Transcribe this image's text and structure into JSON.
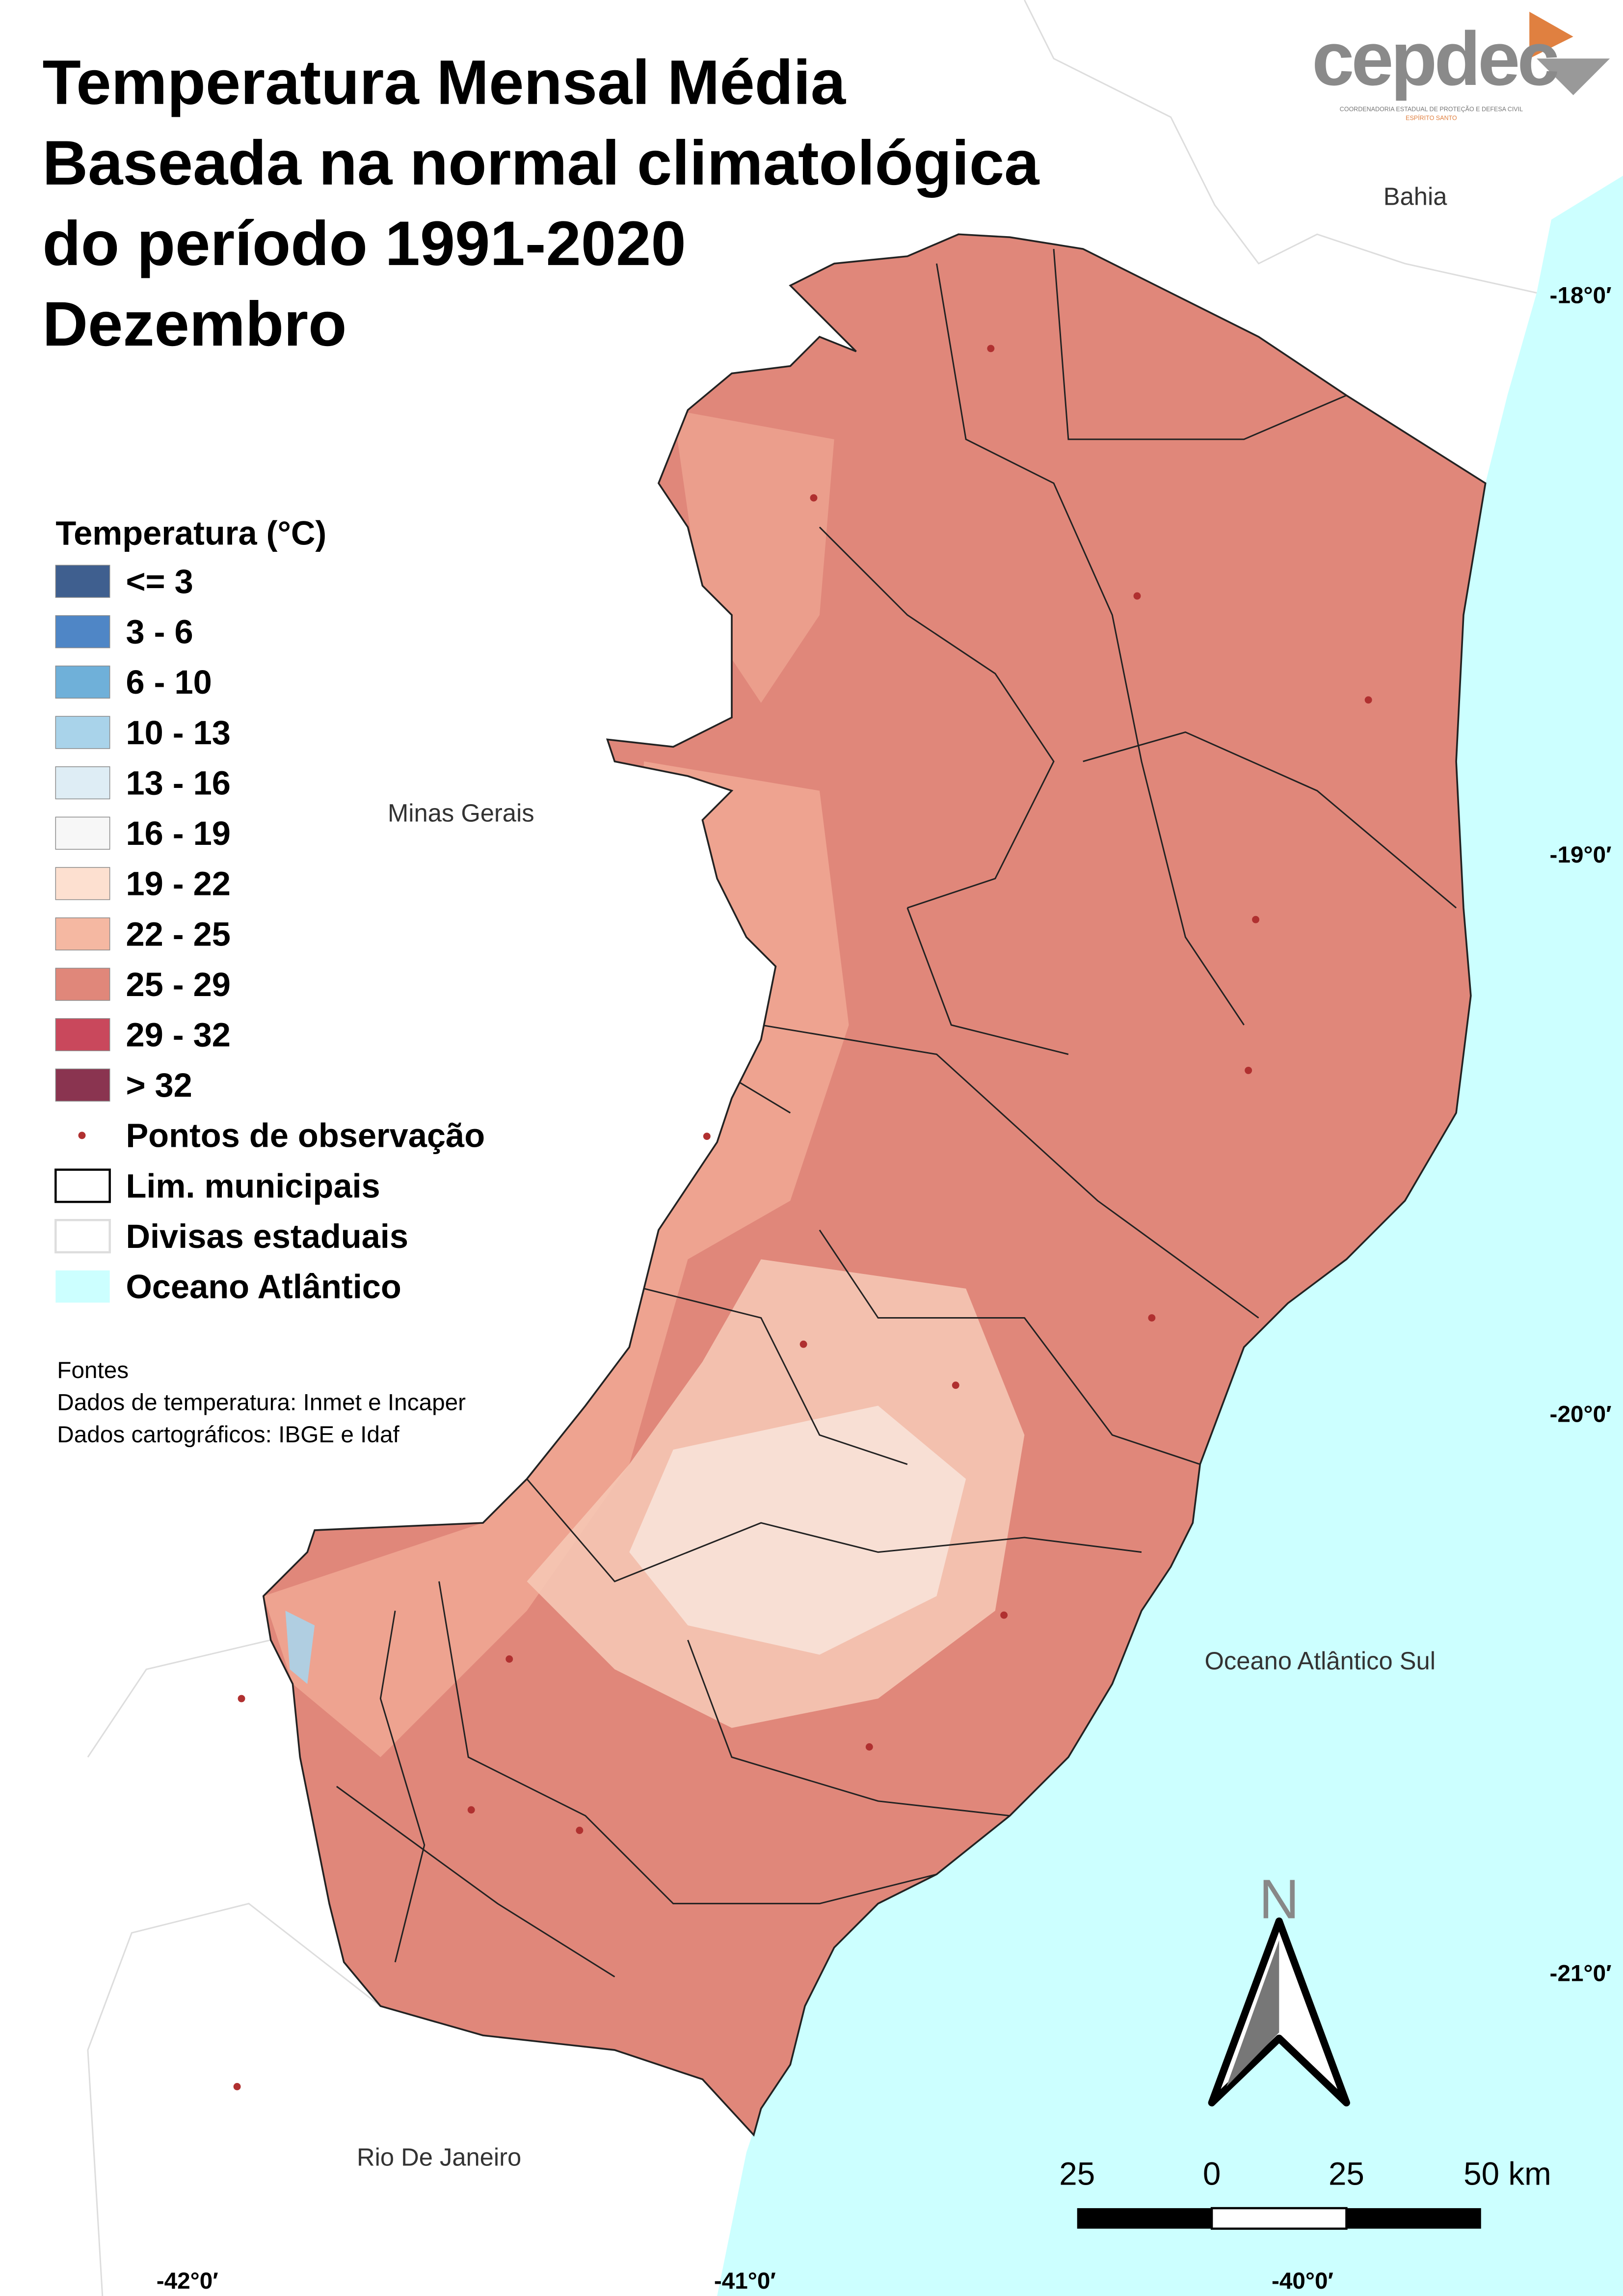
{
  "title": [
    "Temperatura Mensal Média",
    "Baseada na normal climatológica",
    "do período 1991-2020",
    "Dezembro"
  ],
  "logo": {
    "name": "cepdec",
    "line1": "COORDENADORIA ESTADUAL DE PROTEÇÃO E DEFESA CIVIL",
    "line2": "ESPÍRITO SANTO"
  },
  "legend": {
    "title": "Temperatura (°C)",
    "classes": [
      {
        "label": "<= 3",
        "color": "#3f5f8f"
      },
      {
        "label": "3 - 6",
        "color": "#4f86c6"
      },
      {
        "label": "6 - 10",
        "color": "#6fb0d9"
      },
      {
        "label": "10 - 13",
        "color": "#a9d3ea"
      },
      {
        "label": "13 - 16",
        "color": "#deedf5"
      },
      {
        "label": "16 - 19",
        "color": "#f7f7f7"
      },
      {
        "label": "19 - 22",
        "color": "#fde0d0"
      },
      {
        "label": "22 - 25",
        "color": "#f5b8a2"
      },
      {
        "label": "25 - 29",
        "color": "#e0877a"
      },
      {
        "label": "29 - 32",
        "color": "#c9485c"
      },
      {
        "label": "> 32",
        "color": "#8a3450"
      }
    ],
    "points": "Pontos de observação",
    "municipal": "Lim. municipais",
    "state": "Divisas estaduais",
    "ocean": {
      "label": "Oceano Atlântico",
      "color": "#ccffff"
    }
  },
  "sources": [
    "Fontes",
    "Dados de temperatura: Inmet e Incaper",
    "Dados cartográficos: IBGE e Idaf"
  ],
  "places": {
    "bahia": "Bahia",
    "minas": "Minas Gerais",
    "rio": "Rio De Janeiro",
    "ocean": "Oceano Atlântico Sul"
  },
  "latitudes": [
    "-18°0′",
    "-19°0′",
    "-20°0′",
    "-21°0′"
  ],
  "longitudes": [
    "-42°0′",
    "-41°0′",
    "-40°0′"
  ],
  "scale_bar": [
    "25",
    "0",
    "25",
    "50 km"
  ],
  "north": "N"
}
